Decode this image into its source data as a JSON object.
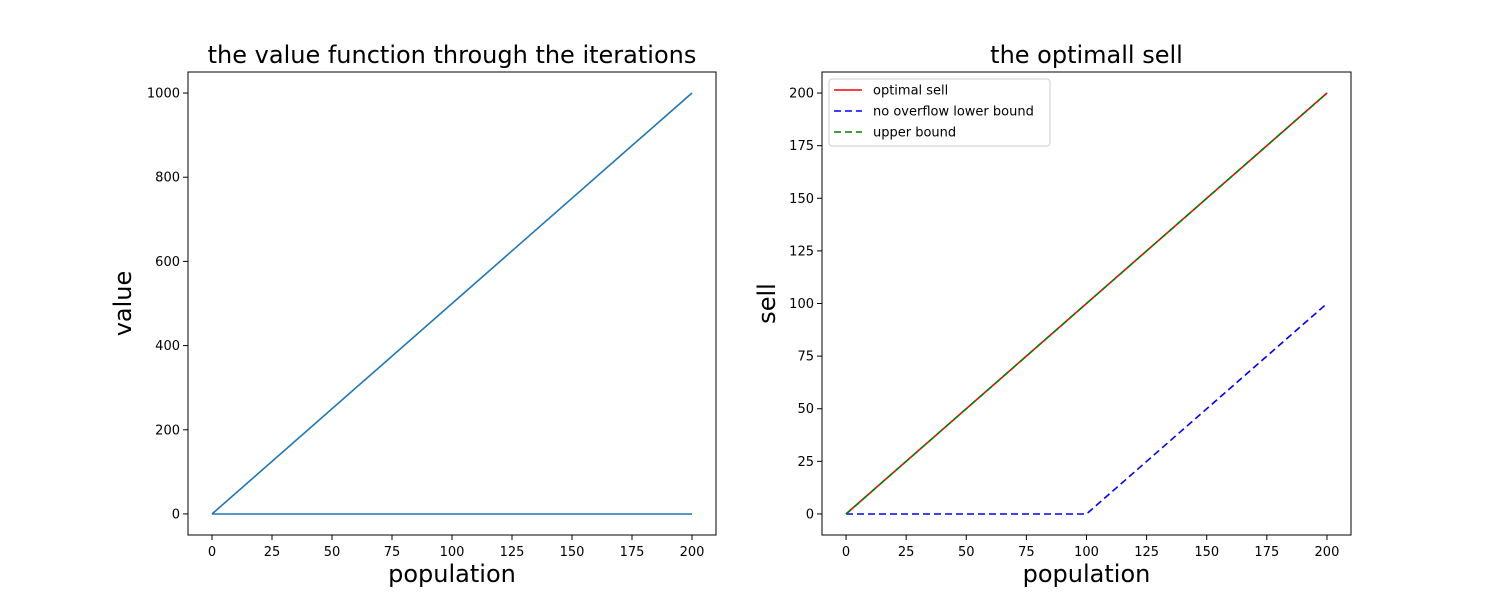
{
  "chart_data": [
    {
      "type": "line",
      "title": "the value function through the iterations",
      "xlabel": "population",
      "ylabel": "value",
      "xlim": [
        -10,
        210
      ],
      "ylim": [
        -50,
        1050
      ],
      "xticks": [
        0,
        25,
        50,
        75,
        100,
        125,
        150,
        175,
        200
      ],
      "yticks": [
        0,
        200,
        400,
        600,
        800,
        1000
      ],
      "grid": false,
      "legend": null,
      "series": [
        {
          "x": [
            0,
            200
          ],
          "y": [
            0,
            0
          ],
          "color": "#1f77b4",
          "style": "solid"
        },
        {
          "x": [
            0,
            200
          ],
          "y": [
            0,
            1000
          ],
          "color": "#1f77b4",
          "style": "solid"
        }
      ]
    },
    {
      "type": "line",
      "title": "the optimall sell",
      "xlabel": "population",
      "ylabel": "sell",
      "xlim": [
        -10,
        210
      ],
      "ylim": [
        -10,
        210
      ],
      "xticks": [
        0,
        25,
        50,
        75,
        100,
        125,
        150,
        175,
        200
      ],
      "yticks": [
        0,
        25,
        50,
        75,
        100,
        125,
        150,
        175,
        200
      ],
      "grid": false,
      "legend": "upper-left",
      "series": [
        {
          "name": "optimal sell",
          "x": [
            0,
            200
          ],
          "y": [
            0,
            200
          ],
          "color": "#ff0000",
          "style": "solid"
        },
        {
          "name": "no overflow lower bound",
          "x": [
            0,
            100,
            200
          ],
          "y": [
            0,
            0,
            100
          ],
          "color": "#0000ff",
          "style": "dashed"
        },
        {
          "name": "upper bound",
          "x": [
            0,
            200
          ],
          "y": [
            0,
            200
          ],
          "color": "#008000",
          "style": "dashed"
        }
      ]
    }
  ]
}
